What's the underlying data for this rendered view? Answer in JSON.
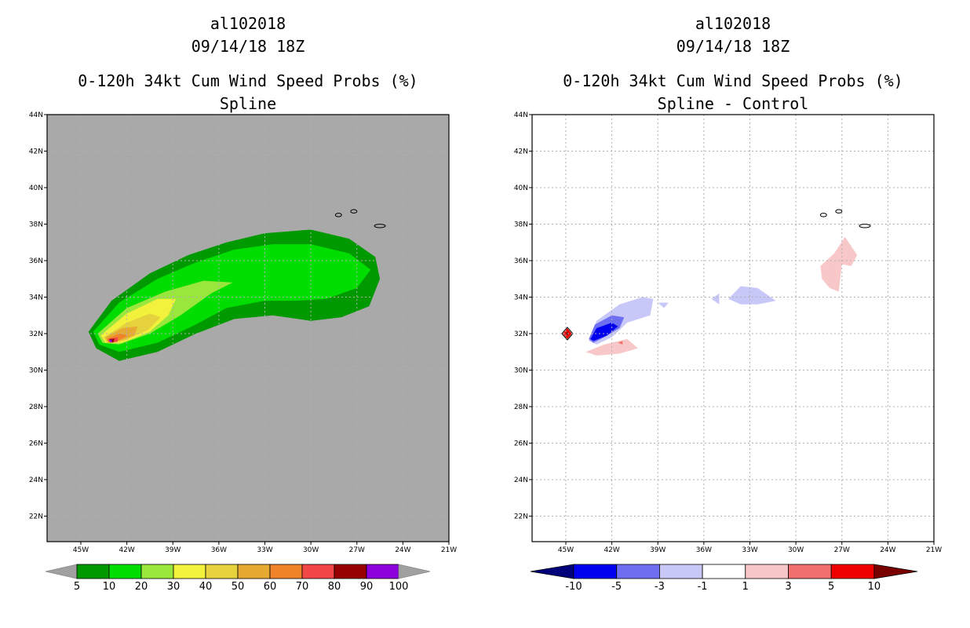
{
  "panels": [
    {
      "title_lines": [
        "al102018",
        "09/14/18 18Z",
        "0-120h 34kt Cum Wind Speed Probs (%)",
        "Spline"
      ]
    },
    {
      "title_lines": [
        "al102018",
        "09/14/18 18Z",
        "0-120h 34kt Cum Wind Speed Probs (%)",
        "Spline - Control"
      ]
    }
  ],
  "chart_data": [
    {
      "type": "heatmap",
      "title": "0-120h 34kt Cum Wind Speed Probs (%) - Spline",
      "storm": "al102018",
      "datetime": "09/14/18 18Z",
      "x_ticks": [
        "45W",
        "42W",
        "39W",
        "36W",
        "33W",
        "30W",
        "27W",
        "24W",
        "21W"
      ],
      "y_ticks": [
        "44N",
        "42N",
        "40N",
        "38N",
        "36N",
        "34N",
        "32N",
        "30N",
        "28N",
        "26N",
        "24N",
        "22N"
      ],
      "xlim_lon": [
        -47.2,
        -21.0
      ],
      "ylim_lat": [
        20.6,
        44.0
      ],
      "grid": true,
      "background": "#a9a9a9",
      "colorbar": {
        "labels": [
          "5",
          "10",
          "20",
          "30",
          "40",
          "50",
          "60",
          "70",
          "80",
          "90",
          "100"
        ],
        "colors": [
          "#009900",
          "#00dd00",
          "#99e63c",
          "#f2f23c",
          "#e6d23c",
          "#e6aa32",
          "#f08228",
          "#f04646",
          "#960000",
          "#8c00dc"
        ],
        "end_colors": [
          "#a0a0a0",
          "#a0a0a0"
        ]
      },
      "contour_levels": [
        {
          "min": 5,
          "color": "#009900",
          "points": [
            [
              -44.5,
              32.1
            ],
            [
              -43,
              33.8
            ],
            [
              -40.5,
              35.3
            ],
            [
              -38,
              36.3
            ],
            [
              -35.5,
              37.0
            ],
            [
              -33,
              37.5
            ],
            [
              -30,
              37.7
            ],
            [
              -27.5,
              37.2
            ],
            [
              -25.8,
              36.2
            ],
            [
              -25.5,
              35.0
            ],
            [
              -26.2,
              33.5
            ],
            [
              -28,
              32.9
            ],
            [
              -30,
              32.7
            ],
            [
              -32.5,
              33.0
            ],
            [
              -35,
              32.8
            ],
            [
              -37.5,
              32.0
            ],
            [
              -40,
              31.0
            ],
            [
              -42.5,
              30.5
            ],
            [
              -44,
              31.2
            ]
          ]
        },
        {
          "min": 10,
          "color": "#00dd00",
          "points": [
            [
              -44.2,
              32.1
            ],
            [
              -42.5,
              33.7
            ],
            [
              -40,
              35.0
            ],
            [
              -37.5,
              35.9
            ],
            [
              -35,
              36.6
            ],
            [
              -32.5,
              36.9
            ],
            [
              -30,
              36.9
            ],
            [
              -27.5,
              36.4
            ],
            [
              -26.1,
              35.5
            ],
            [
              -27,
              34.5
            ],
            [
              -29,
              33.9
            ],
            [
              -31,
              33.8
            ],
            [
              -33,
              33.8
            ],
            [
              -35.5,
              33.4
            ],
            [
              -37.5,
              32.5
            ],
            [
              -40,
              31.5
            ],
            [
              -42.5,
              31.0
            ],
            [
              -43.8,
              31.4
            ]
          ]
        },
        {
          "min": 20,
          "color": "#99e63c",
          "points": [
            [
              -43.9,
              32.0
            ],
            [
              -42,
              33.4
            ],
            [
              -39.5,
              34.3
            ],
            [
              -37,
              34.9
            ],
            [
              -35.1,
              34.8
            ],
            [
              -36.5,
              34.2
            ],
            [
              -38.5,
              33.0
            ],
            [
              -40.5,
              32.0
            ],
            [
              -42.5,
              31.4
            ],
            [
              -43.6,
              31.5
            ]
          ]
        },
        {
          "min": 30,
          "color": "#f2f23c",
          "points": [
            [
              -43.7,
              31.9
            ],
            [
              -42,
              33.1
            ],
            [
              -40,
              33.9
            ],
            [
              -38.8,
              33.9
            ],
            [
              -39.3,
              33.0
            ],
            [
              -40.5,
              32.1
            ],
            [
              -42.3,
              31.5
            ],
            [
              -43.4,
              31.5
            ]
          ]
        },
        {
          "min": 40,
          "color": "#e6d23c",
          "points": [
            [
              -43.5,
              31.8
            ],
            [
              -42,
              32.6
            ],
            [
              -40.5,
              33.1
            ],
            [
              -39.8,
              32.9
            ],
            [
              -40.6,
              32.2
            ],
            [
              -42.2,
              31.6
            ],
            [
              -43.3,
              31.5
            ]
          ]
        },
        {
          "min": 50,
          "color": "#e6aa32",
          "points": [
            [
              -43.4,
              31.8
            ],
            [
              -42.3,
              32.3
            ],
            [
              -41.3,
              32.4
            ],
            [
              -41.5,
              31.9
            ],
            [
              -42.5,
              31.6
            ],
            [
              -43.2,
              31.5
            ]
          ]
        },
        {
          "min": 60,
          "color": "#f08228",
          "points": [
            [
              -43.3,
              31.7
            ],
            [
              -42.5,
              32.0
            ],
            [
              -41.9,
              31.9
            ],
            [
              -42.6,
              31.6
            ],
            [
              -43.2,
              31.5
            ]
          ]
        },
        {
          "min": 70,
          "color": "#f04646",
          "points": [
            [
              -43.2,
              31.7
            ],
            [
              -42.6,
              31.8
            ],
            [
              -42.6,
              31.55
            ],
            [
              -43.1,
              31.5
            ]
          ]
        },
        {
          "min": 80,
          "color": "#960000",
          "points": [
            [
              -43.15,
              31.7
            ],
            [
              -42.8,
              31.72
            ],
            [
              -42.9,
              31.5
            ]
          ]
        },
        {
          "min": 90,
          "color": "#8c00dc",
          "points": [
            [
              -43.2,
              31.65
            ],
            [
              -42.95,
              31.68
            ],
            [
              -43.0,
              31.5
            ]
          ]
        }
      ]
    },
    {
      "type": "heatmap",
      "title": "0-120h 34kt Cum Wind Speed Probs (%) - Spline - Control",
      "storm": "al102018",
      "datetime": "09/14/18 18Z",
      "x_ticks": [
        "45W",
        "42W",
        "39W",
        "36W",
        "33W",
        "30W",
        "27W",
        "24W",
        "21W"
      ],
      "y_ticks": [
        "44N",
        "42N",
        "40N",
        "38N",
        "36N",
        "34N",
        "32N",
        "30N",
        "28N",
        "26N",
        "24N",
        "22N"
      ],
      "xlim_lon": [
        -47.2,
        -21.0
      ],
      "ylim_lat": [
        20.6,
        44.0
      ],
      "grid": true,
      "background": "#ffffff",
      "colorbar": {
        "labels": [
          "-10",
          "-5",
          "-3",
          "-1",
          "1",
          "3",
          "5",
          "10"
        ],
        "colors": [
          "#0000ee",
          "#6e6ef0",
          "#c8c8f8",
          "#ffffff",
          "#f8c8c8",
          "#f07070",
          "#ee0000"
        ],
        "end_colors": [
          "#00007a",
          "#7a0000"
        ]
      },
      "contour_levels": [
        {
          "min": -3,
          "color": "#c8c8f8",
          "points": [
            [
              -43.5,
              31.6
            ],
            [
              -43,
              32.7
            ],
            [
              -41.5,
              33.6
            ],
            [
              -40,
              34.0
            ],
            [
              -39.3,
              33.9
            ],
            [
              -39.5,
              33.0
            ],
            [
              -41,
              32.6
            ],
            [
              -42,
              31.8
            ],
            [
              -43,
              31.4
            ]
          ]
        },
        {
          "min": -3,
          "color": "#c8c8f8",
          "points": [
            [
              -39.0,
              33.7
            ],
            [
              -38.3,
              33.7
            ],
            [
              -38.6,
              33.4
            ]
          ]
        },
        {
          "min": -3,
          "color": "#c8c8f8",
          "points": [
            [
              -34.4,
              33.9
            ],
            [
              -33.6,
              34.6
            ],
            [
              -32.5,
              34.5
            ],
            [
              -31.3,
              33.8
            ],
            [
              -32.5,
              33.6
            ],
            [
              -33.6,
              33.6
            ]
          ]
        },
        {
          "min": -3,
          "color": "#c8c8f8",
          "points": [
            [
              -35.5,
              33.9
            ],
            [
              -35.0,
              34.2
            ],
            [
              -35.0,
              33.6
            ]
          ]
        },
        {
          "min": -5,
          "color": "#6e6ef0",
          "points": [
            [
              -43.5,
              31.7
            ],
            [
              -43.1,
              32.5
            ],
            [
              -42,
              33.0
            ],
            [
              -41.2,
              32.9
            ],
            [
              -41.5,
              32.3
            ],
            [
              -42.5,
              31.8
            ],
            [
              -43.2,
              31.5
            ]
          ]
        },
        {
          "min": -10,
          "color": "#0000ee",
          "points": [
            [
              -43.4,
              31.7
            ],
            [
              -43.0,
              32.3
            ],
            [
              -42.0,
              32.6
            ],
            [
              -41.6,
              32.4
            ],
            [
              -42.3,
              31.9
            ],
            [
              -43.2,
              31.6
            ]
          ]
        },
        {
          "min": 1,
          "color": "#f8c8c8",
          "points": [
            [
              -43.7,
              31.0
            ],
            [
              -42.5,
              31.4
            ],
            [
              -41.0,
              31.7
            ],
            [
              -40.3,
              31.2
            ],
            [
              -41.5,
              30.9
            ],
            [
              -43.0,
              30.8
            ]
          ]
        },
        {
          "min": 1,
          "color": "#f8c8c8",
          "points": [
            [
              -28.4,
              35.7
            ],
            [
              -27.5,
              36.4
            ],
            [
              -26.8,
              37.3
            ],
            [
              -26.0,
              36.3
            ],
            [
              -26.4,
              35.7
            ],
            [
              -27.0,
              35.8
            ],
            [
              -27.2,
              34.3
            ],
            [
              -27.8,
              34.5
            ],
            [
              -28.3,
              35.0
            ]
          ]
        },
        {
          "min": 3,
          "color": "#f07070",
          "points": [
            [
              -41.6,
              31.5
            ],
            [
              -41.3,
              31.6
            ],
            [
              -41.3,
              31.4
            ]
          ]
        },
        {
          "min": 5,
          "color": "#ee0000",
          "points": [
            [
              -45.2,
              32.0
            ],
            [
              -44.9,
              32.3
            ],
            [
              -44.6,
              32.0
            ],
            [
              -44.9,
              31.7
            ]
          ]
        },
        {
          "min": 10,
          "color": "#7a0000",
          "points": [
            [
              -45.0,
              32.0
            ],
            [
              -44.9,
              32.1
            ],
            [
              -44.8,
              32.0
            ],
            [
              -44.9,
              31.9
            ]
          ]
        }
      ]
    }
  ]
}
